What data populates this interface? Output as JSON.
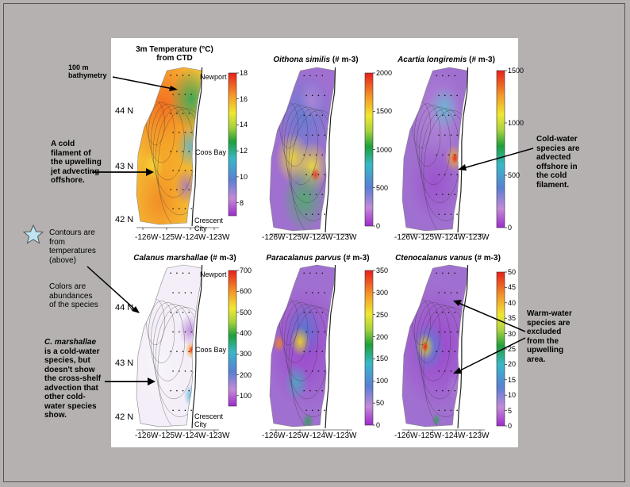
{
  "charts": [
    {
      "id": "temp",
      "title_line1": "3m Temperature (°C)",
      "title_line2": "from CTD",
      "ticks": [
        "18",
        "16",
        "14",
        "12",
        "10",
        "8"
      ]
    },
    {
      "id": "oithona",
      "title_species": "Oithona similis",
      "title_unit": " (# m-3)",
      "ticks": [
        "2000",
        "1500",
        "1000",
        "500",
        "0"
      ]
    },
    {
      "id": "acartia",
      "title_species": "Acartia longiremis",
      "title_unit": "  (# m-3)",
      "ticks": [
        "1500",
        "1000",
        "500",
        "0"
      ]
    },
    {
      "id": "calanus",
      "title_species": "Calanus marshallae",
      "title_unit": "  (# m-3)",
      "ticks": [
        "700",
        "600",
        "500",
        "400",
        "300",
        "200",
        "100"
      ]
    },
    {
      "id": "paracalanus",
      "title_species": "Paracalanus parvus",
      "title_unit": "  (# m-3)",
      "ticks": [
        "350",
        "300",
        "250",
        "200",
        "150",
        "100",
        "50",
        "0"
      ]
    },
    {
      "id": "ctenocalanus",
      "title_species": "Ctenocalanus vanus",
      "title_unit": "  (# m-3)",
      "ticks": [
        "50",
        "45",
        "40",
        "35",
        "30",
        "25",
        "20",
        "15",
        "10",
        "5",
        "0"
      ]
    }
  ],
  "chart_data": [
    {
      "type": "heatmap",
      "title": "3m Temperature (°C) from CTD",
      "colorbar_range": [
        7,
        18
      ],
      "colorbar_ticks": [
        8,
        10,
        12,
        14,
        16,
        18
      ],
      "x_ticks": [
        "-126W",
        "-125W",
        "-124W",
        "-123W"
      ],
      "y_ticks": [
        "44 N",
        "43 N",
        "42 N"
      ]
    },
    {
      "type": "heatmap",
      "title": "Oithona similis (# m-3)",
      "colorbar_range": [
        0,
        2000
      ],
      "colorbar_ticks": [
        0,
        500,
        1000,
        1500,
        2000
      ],
      "x_ticks": [
        "-126W",
        "-125W",
        "-124W",
        "-123W"
      ]
    },
    {
      "type": "heatmap",
      "title": "Acartia longiremis (# m-3)",
      "colorbar_range": [
        0,
        1500
      ],
      "colorbar_ticks": [
        0,
        500,
        1000,
        1500
      ],
      "x_ticks": [
        "-126W",
        "-125W",
        "-124W",
        "-123W"
      ]
    },
    {
      "type": "heatmap",
      "title": "Calanus marshallae (# m-3)",
      "colorbar_range": [
        50,
        700
      ],
      "colorbar_ticks": [
        100,
        200,
        300,
        400,
        500,
        600,
        700
      ],
      "x_ticks": [
        "-126W",
        "-125W",
        "-124W",
        "-123W"
      ],
      "y_ticks": [
        "44 N",
        "43 N",
        "42 N"
      ]
    },
    {
      "type": "heatmap",
      "title": "Paracalanus parvus (# m-3)",
      "colorbar_range": [
        0,
        350
      ],
      "colorbar_ticks": [
        0,
        50,
        100,
        150,
        200,
        250,
        300,
        350
      ],
      "x_ticks": [
        "-126W",
        "-125W",
        "-124W",
        "-123W"
      ]
    },
    {
      "type": "heatmap",
      "title": "Ctenocalanus vanus (# m-3)",
      "colorbar_range": [
        0,
        50
      ],
      "colorbar_ticks": [
        0,
        5,
        10,
        15,
        20,
        25,
        30,
        35,
        40,
        45,
        50
      ],
      "x_ticks": [
        "-126W",
        "-125W",
        "-124W",
        "-123W"
      ]
    }
  ],
  "axes": {
    "lat_top": [
      "44 N",
      "43 N",
      "42 N"
    ],
    "lat_bottom": [
      "44 N",
      "43 N",
      "42 N"
    ],
    "lon": [
      "-126W",
      "-125W",
      "-124W",
      "-123W"
    ]
  },
  "places": {
    "newport": "Newport",
    "coos_bay": "Coos Bay",
    "crescent_1": "Crescent",
    "crescent_2": "City"
  },
  "annotations": {
    "bathy": [
      "100 m",
      "bathymetry"
    ],
    "cold_filament": [
      "A cold",
      "filament of",
      "the upwelling",
      "jet advecting",
      "offshore."
    ],
    "contours": [
      "Contours are",
      "from",
      "temperatures",
      "(above)"
    ],
    "colors": [
      "Colors are",
      "abundances",
      "of the species"
    ],
    "marshallae_name": "C. marshallae",
    "marshallae_rest": [
      "is a cold-water",
      "species, but",
      "doesn't show",
      "the cross-shelf",
      "advection that",
      "other cold-",
      "water species",
      "show."
    ],
    "coldwater": [
      "Cold-water",
      "species are",
      "advected",
      "offshore in",
      "the cold",
      "filament."
    ],
    "warmwater": [
      "Warm-water",
      "species are",
      "excluded",
      "from the",
      "upwelling",
      "area."
    ]
  },
  "colors": {
    "background": "#b4b1b0",
    "panel": "#ffffff",
    "star": "#bfe3f2"
  }
}
